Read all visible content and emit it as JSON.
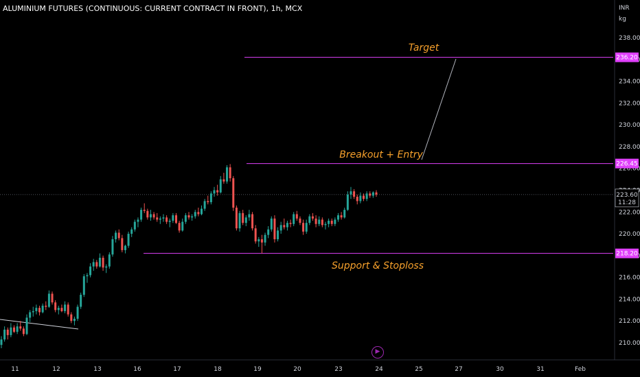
{
  "header": {
    "title": "ALUMINIUM FUTURES (CONTINUOUS: CURRENT CONTRACT IN FRONT), 1h, MCX"
  },
  "axis_units": {
    "currency": "INR",
    "unit": "kg"
  },
  "chart_data": {
    "type": "candlestick",
    "title": "ALUMINIUM FUTURES (CONTINUOUS: CURRENT CONTRACT IN FRONT), 1h, MCX",
    "ylim": [
      208.4,
      240.0
    ],
    "y_ticks": [
      "238.00",
      "236.00",
      "234.00",
      "232.00",
      "230.00",
      "228.00",
      "226.00",
      "224.00",
      "222.00",
      "220.00",
      "218.00",
      "216.00",
      "214.00",
      "212.00",
      "210.00"
    ],
    "x_ticks": [
      "11",
      "12",
      "13",
      "16",
      "17",
      "18",
      "19",
      "20",
      "23",
      "24",
      "25",
      "27",
      "30",
      "31",
      "Feb"
    ],
    "current_price": {
      "value": "223.60",
      "countdown": "11:28"
    },
    "series": [
      {
        "values": [
          [
            209.8,
            210.6,
            209.5,
            210.3
          ],
          [
            210.3,
            211.5,
            210.1,
            211.2
          ],
          [
            211.2,
            211.4,
            210.3,
            210.7
          ],
          [
            210.7,
            211.8,
            210.5,
            211.4
          ],
          [
            211.4,
            211.6,
            210.9,
            211.0
          ],
          [
            211.0,
            211.8,
            210.8,
            211.5
          ],
          [
            211.5,
            212.0,
            211.1,
            211.3
          ],
          [
            211.3,
            211.5,
            210.6,
            210.8
          ],
          [
            210.8,
            212.6,
            210.7,
            212.3
          ],
          [
            212.3,
            213.0,
            211.9,
            212.8
          ],
          [
            212.8,
            213.3,
            212.4,
            212.9
          ],
          [
            212.9,
            213.5,
            212.6,
            213.2
          ],
          [
            213.2,
            213.4,
            212.5,
            212.8
          ],
          [
            212.8,
            213.6,
            212.7,
            213.4
          ],
          [
            213.4,
            213.8,
            213.0,
            213.3
          ],
          [
            213.3,
            214.8,
            213.2,
            214.5
          ],
          [
            214.5,
            214.7,
            213.5,
            213.7
          ],
          [
            213.7,
            213.9,
            212.8,
            213.0
          ],
          [
            213.0,
            213.4,
            212.6,
            213.2
          ],
          [
            213.2,
            213.5,
            212.8,
            212.9
          ],
          [
            212.9,
            213.8,
            212.7,
            213.5
          ],
          [
            213.5,
            213.7,
            212.4,
            212.6
          ],
          [
            212.6,
            212.8,
            211.8,
            212.0
          ],
          [
            212.0,
            212.4,
            211.6,
            212.2
          ],
          [
            212.2,
            213.5,
            212.0,
            213.3
          ],
          [
            213.3,
            214.6,
            213.1,
            214.4
          ],
          [
            214.4,
            216.3,
            214.2,
            216.1
          ],
          [
            216.1,
            216.4,
            215.5,
            216.2
          ],
          [
            216.2,
            217.3,
            216.0,
            217.0
          ],
          [
            217.0,
            217.7,
            216.6,
            217.4
          ],
          [
            217.4,
            217.6,
            216.8,
            217.0
          ],
          [
            217.0,
            218.2,
            216.9,
            217.8
          ],
          [
            217.8,
            218.0,
            216.6,
            216.9
          ],
          [
            216.9,
            217.2,
            216.4,
            217.0
          ],
          [
            217.0,
            218.3,
            216.8,
            218.1
          ],
          [
            218.1,
            219.8,
            217.9,
            219.5
          ],
          [
            219.5,
            220.3,
            219.2,
            220.1
          ],
          [
            220.1,
            220.4,
            219.4,
            219.6
          ],
          [
            219.6,
            219.9,
            218.3,
            218.5
          ],
          [
            218.5,
            219.0,
            218.2,
            218.9
          ],
          [
            218.9,
            220.2,
            218.7,
            220.0
          ],
          [
            220.0,
            220.6,
            219.7,
            220.4
          ],
          [
            220.4,
            221.3,
            220.2,
            221.1
          ],
          [
            221.1,
            221.5,
            220.6,
            221.3
          ],
          [
            221.3,
            222.4,
            221.1,
            222.2
          ],
          [
            222.2,
            222.8,
            221.9,
            222.1
          ],
          [
            222.1,
            222.3,
            221.3,
            221.5
          ],
          [
            221.5,
            222.2,
            221.2,
            221.8
          ],
          [
            221.8,
            222.0,
            221.3,
            221.5
          ],
          [
            221.5,
            221.9,
            221.1,
            221.3
          ],
          [
            221.3,
            221.6,
            220.9,
            221.4
          ],
          [
            221.4,
            221.8,
            221.1,
            221.5
          ],
          [
            221.5,
            221.7,
            220.9,
            221.1
          ],
          [
            221.1,
            221.4,
            220.6,
            221.2
          ],
          [
            221.2,
            221.9,
            221.0,
            221.7
          ],
          [
            221.7,
            221.9,
            220.9,
            221.0
          ],
          [
            221.0,
            221.2,
            220.1,
            220.3
          ],
          [
            220.3,
            221.4,
            220.2,
            221.1
          ],
          [
            221.1,
            221.9,
            220.9,
            221.7
          ],
          [
            221.7,
            222.0,
            221.3,
            221.5
          ],
          [
            221.5,
            221.8,
            221.2,
            221.6
          ],
          [
            221.6,
            222.2,
            221.4,
            222.0
          ],
          [
            222.0,
            222.4,
            221.6,
            221.8
          ],
          [
            221.8,
            222.6,
            221.7,
            222.3
          ],
          [
            222.3,
            223.2,
            222.1,
            223.0
          ],
          [
            223.0,
            223.5,
            222.7,
            222.9
          ],
          [
            222.9,
            223.9,
            222.7,
            223.7
          ],
          [
            223.7,
            224.3,
            223.4,
            224.0
          ],
          [
            224.0,
            224.5,
            223.5,
            223.8
          ],
          [
            223.8,
            225.3,
            223.7,
            225.0
          ],
          [
            225.0,
            225.6,
            224.6,
            224.8
          ],
          [
            224.8,
            226.3,
            224.6,
            226.1
          ],
          [
            226.1,
            226.4,
            224.8,
            225.1
          ],
          [
            225.1,
            225.3,
            222.1,
            222.4
          ],
          [
            222.4,
            222.6,
            220.3,
            220.5
          ],
          [
            220.5,
            222.1,
            220.2,
            221.9
          ],
          [
            221.9,
            222.2,
            220.8,
            221.0
          ],
          [
            221.0,
            221.7,
            220.7,
            221.5
          ],
          [
            221.5,
            222.2,
            221.2,
            221.8
          ],
          [
            221.8,
            222.0,
            220.3,
            220.5
          ],
          [
            220.5,
            220.8,
            219.1,
            219.3
          ],
          [
            219.3,
            219.7,
            218.8,
            219.5
          ],
          [
            219.5,
            219.9,
            218.2,
            219.2
          ],
          [
            219.2,
            220.1,
            218.9,
            219.9
          ],
          [
            219.9,
            220.7,
            219.6,
            220.4
          ],
          [
            220.4,
            221.6,
            220.2,
            221.4
          ],
          [
            221.4,
            221.7,
            219.2,
            219.5
          ],
          [
            219.5,
            220.6,
            219.3,
            220.3
          ],
          [
            220.3,
            221.1,
            220.0,
            220.8
          ],
          [
            220.8,
            221.4,
            220.4,
            220.6
          ],
          [
            220.6,
            221.2,
            220.3,
            221.0
          ],
          [
            221.0,
            221.3,
            220.6,
            220.9
          ],
          [
            220.9,
            222.0,
            220.7,
            221.8
          ],
          [
            221.8,
            222.1,
            221.2,
            221.4
          ],
          [
            221.4,
            221.6,
            220.8,
            221.0
          ],
          [
            221.0,
            221.3,
            219.9,
            220.2
          ],
          [
            220.2,
            221.3,
            220.0,
            221.0
          ],
          [
            221.0,
            221.8,
            220.8,
            221.6
          ],
          [
            221.6,
            221.9,
            221.2,
            221.4
          ],
          [
            221.4,
            221.7,
            220.6,
            220.9
          ],
          [
            220.9,
            221.6,
            220.7,
            221.3
          ],
          [
            221.3,
            221.5,
            220.6,
            220.8
          ],
          [
            220.8,
            221.1,
            220.4,
            220.9
          ],
          [
            220.9,
            221.4,
            220.6,
            221.2
          ],
          [
            221.2,
            221.4,
            220.7,
            220.9
          ],
          [
            220.9,
            221.5,
            220.7,
            221.3
          ],
          [
            221.3,
            221.9,
            221.1,
            221.7
          ],
          [
            221.7,
            222.0,
            221.3,
            221.5
          ],
          [
            221.5,
            222.4,
            221.4,
            222.2
          ],
          [
            222.2,
            223.9,
            222.1,
            223.6
          ],
          [
            223.6,
            224.3,
            223.2,
            223.9
          ],
          [
            223.9,
            224.1,
            223.2,
            223.4
          ],
          [
            223.4,
            223.6,
            222.7,
            223.0
          ],
          [
            223.0,
            223.8,
            222.8,
            223.5
          ],
          [
            223.5,
            223.7,
            223.0,
            223.2
          ],
          [
            223.2,
            223.9,
            223.0,
            223.7
          ],
          [
            223.7,
            223.9,
            223.3,
            223.5
          ],
          [
            223.5,
            223.9,
            223.3,
            223.8
          ],
          [
            223.8,
            224.0,
            223.4,
            223.6
          ]
        ]
      }
    ],
    "up_color": "#26a69a",
    "down_color": "#ef5350",
    "level_color": "#e040fb",
    "annotation_color": "#f7a12c",
    "levels": [
      {
        "label": "Target",
        "value": 236.2,
        "price_label": "236.20"
      },
      {
        "label": "Breakout + Entry",
        "value": 226.45,
        "price_label": "226.45"
      },
      {
        "label": "Support & Stoploss",
        "value": 218.2,
        "price_label": "218.20"
      }
    ]
  }
}
